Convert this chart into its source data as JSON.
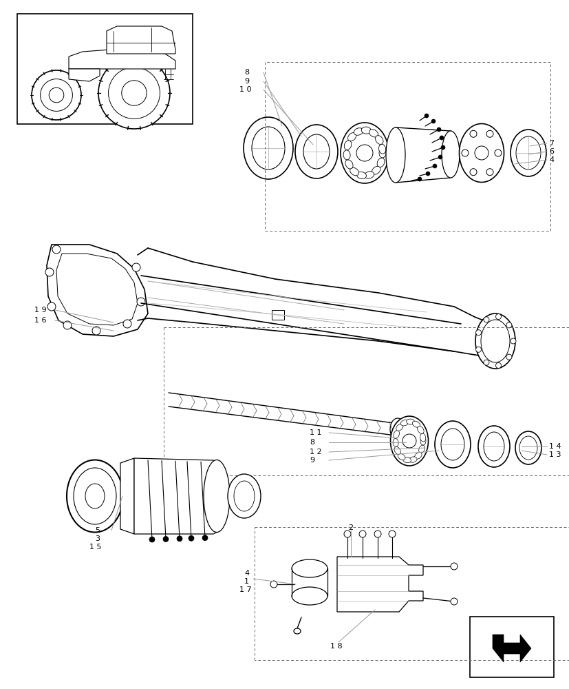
{
  "bg_color": "#ffffff",
  "line_color": "#000000",
  "light_line_color": "#999999",
  "dashed_color": "#666666",
  "figsize": [
    8.28,
    10.0
  ],
  "dpi": 100
}
